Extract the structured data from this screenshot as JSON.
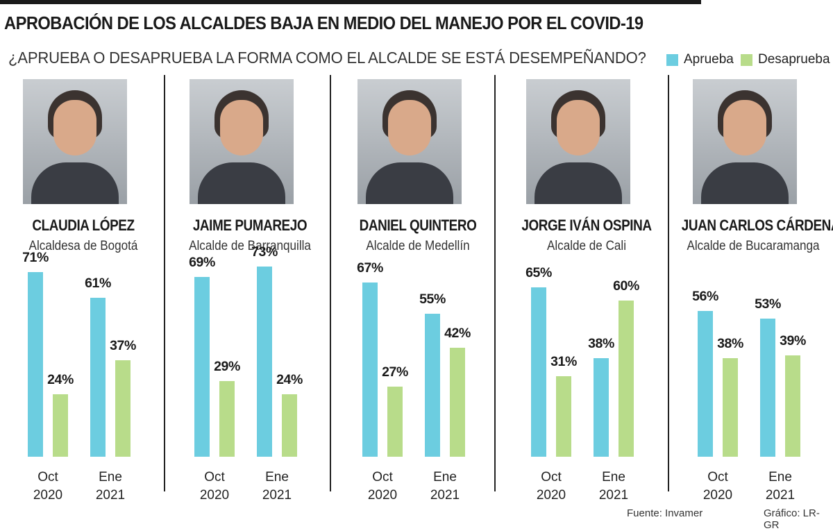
{
  "title": "APROBACIÓN DE LOS ALCALDES BAJA EN MEDIO DEL MANEJO POR EL COVID-19",
  "subtitle": "¿APRUEBA O DESAPRUEBA LA FORMA COMO EL ALCALDE SE ESTÁ DESEMPEÑANDO?",
  "legend": {
    "aprueba": "Aprueba",
    "desaprueba": "Desaprueba"
  },
  "colors": {
    "aprueba": "#6ccde0",
    "desaprueba": "#b8dc8a"
  },
  "source": "Fuente: Invamer",
  "credit": "Gráfico: LR-GR",
  "chart_data": {
    "type": "bar",
    "categories": [
      {
        "month": "Oct",
        "year": "2020"
      },
      {
        "month": "Ene",
        "year": "2021"
      }
    ],
    "ylim": [
      0,
      100
    ],
    "panels": [
      {
        "name": "CLAUDIA LÓPEZ",
        "role": "Alcaldesa de Bogotá",
        "aprueba": [
          71,
          61
        ],
        "desaprueba": [
          24,
          37
        ]
      },
      {
        "name": "JAIME PUMAREJO",
        "role": "Alcalde de Barranquilla",
        "aprueba": [
          69,
          73
        ],
        "desaprueba": [
          29,
          24
        ]
      },
      {
        "name": "DANIEL QUINTERO",
        "role": "Alcalde de Medellín",
        "aprueba": [
          67,
          55
        ],
        "desaprueba": [
          27,
          42
        ]
      },
      {
        "name": "JORGE IVÁN OSPINA",
        "role": "Alcalde de Cali",
        "aprueba": [
          65,
          38
        ],
        "desaprueba": [
          31,
          60
        ]
      },
      {
        "name": "JUAN CARLOS CÁRDENAS",
        "role": "Alcalde de Bucaramanga",
        "aprueba": [
          56,
          53
        ],
        "desaprueba": [
          38,
          39
        ]
      }
    ]
  }
}
